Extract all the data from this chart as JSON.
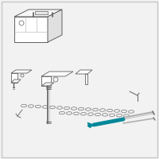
{
  "bg_color": "#f2f2f2",
  "border_color": "#c8c8c8",
  "line_color": "#606060",
  "teal_color": "#008899",
  "light_gray": "#b0b0b0",
  "dark_gray": "#707070",
  "white": "#ffffff",
  "near_white": "#f8f8f8",
  "figsize": [
    2.0,
    2.0
  ],
  "dpi": 100
}
